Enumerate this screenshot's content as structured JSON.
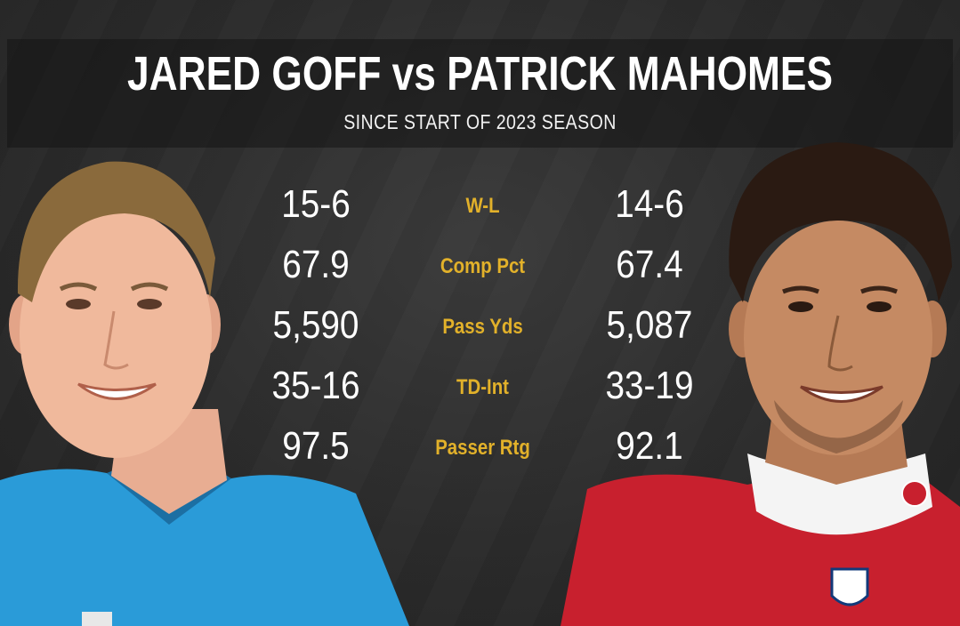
{
  "header": {
    "title": "JARED GOFF vs PATRICK MAHOMES",
    "subtitle": "SINCE START OF 2023 SEASON"
  },
  "players": {
    "left": {
      "jersey_color": "#2a9bd8",
      "logo": "nfl-shield"
    },
    "right": {
      "jersey_color": "#c8202e",
      "logo": "chiefs-arrowhead"
    }
  },
  "stats": [
    {
      "label": "W-L",
      "left": "15-6",
      "right": "14-6"
    },
    {
      "label": "Comp Pct",
      "left": "67.9",
      "right": "67.4"
    },
    {
      "label": "Pass Yds",
      "left": "5,590",
      "right": "5,087"
    },
    {
      "label": "TD-Int",
      "left": "35-16",
      "right": "33-19"
    },
    {
      "label": "Passer Rtg",
      "left": "97.5",
      "right": "92.1"
    }
  ],
  "colors": {
    "label_gold": "#e2b12a",
    "value_white": "#ffffff",
    "background": "#2b2b2b"
  }
}
